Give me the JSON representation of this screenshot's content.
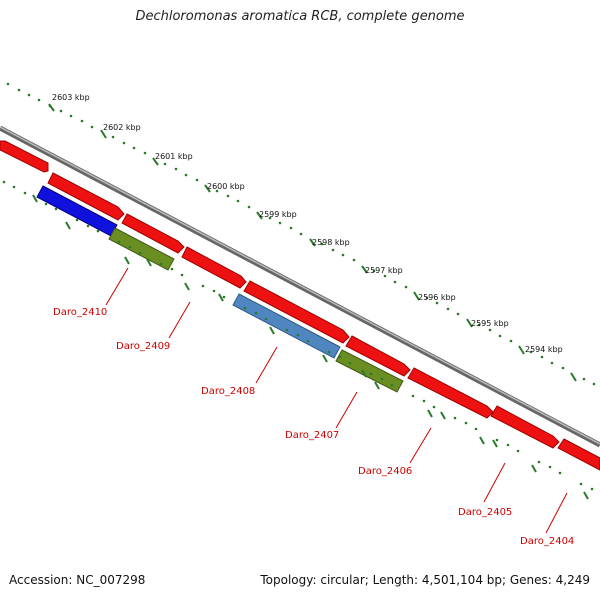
{
  "title": "Dechloromonas aromatica RCB, complete genome",
  "footer": {
    "accession": "Accession: NC_007298",
    "summary": "Topology: circular; Length: 4,501,104 bp; Genes: 4,249"
  },
  "colors": {
    "forward_gene": "#ee1111",
    "blue_gene": "#1111dd",
    "steelblue_gene": "#4f86c0",
    "olive_gene": "#6b8e23",
    "backbone": "#888888",
    "tick_dots": "#2a7a2a",
    "label": "#cc0000"
  },
  "kbp_labels": [
    "2603 kbp",
    "2602 kbp",
    "2601 kbp",
    "2600 kbp",
    "2599 kbp",
    "2598 kbp",
    "2597 kbp",
    "2596 kbp",
    "2595 kbp",
    "2594 kbp"
  ],
  "gene_labels": [
    "Daro_2410",
    "Daro_2409",
    "Daro_2408",
    "Daro_2407",
    "Daro_2406",
    "Daro_2405",
    "Daro_2404"
  ]
}
